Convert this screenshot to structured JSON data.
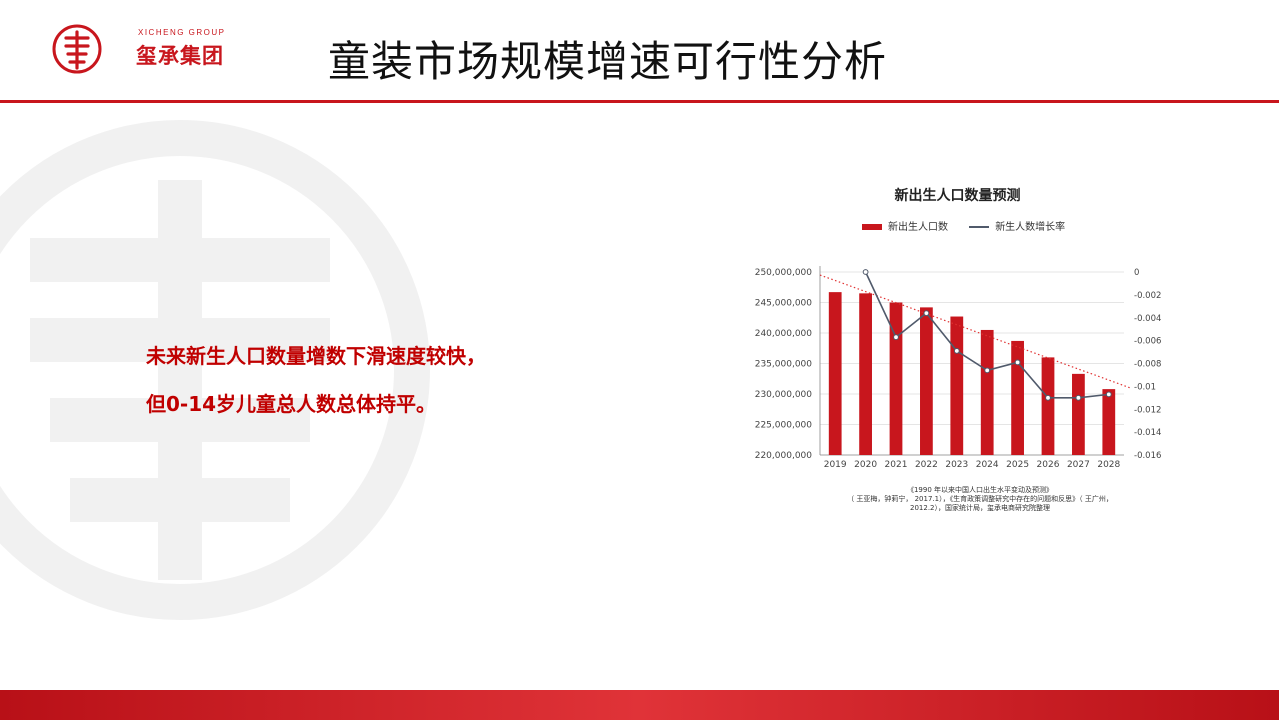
{
  "header": {
    "logo_en": "XICHENG GROUP",
    "logo_cn": "玺承集团",
    "title": "童装市场规模增速可行性分析"
  },
  "summary": {
    "line1": "未来新生人口数量增数下滑速度较快，",
    "line2": "但0-14岁儿童总人数总体持平。"
  },
  "colors": {
    "brand_red": "#c8161d",
    "text_red": "#c00000",
    "line_gray": "#505a6b"
  },
  "chart_data": {
    "type": "bar",
    "title": "新出生人口数量预测",
    "categories": [
      "2019",
      "2020",
      "2021",
      "2022",
      "2023",
      "2024",
      "2025",
      "2026",
      "2027",
      "2028"
    ],
    "series": [
      {
        "name": "新出生人口数",
        "type": "bar",
        "axis": "left",
        "values": [
          246700000,
          246500000,
          245000000,
          244200000,
          242700000,
          240500000,
          238700000,
          236000000,
          233300000,
          230800000
        ]
      },
      {
        "name": "新生人数增长率",
        "type": "line",
        "axis": "right",
        "values": [
          null,
          0,
          -0.0057,
          -0.0036,
          -0.0069,
          -0.0086,
          -0.0079,
          -0.011,
          -0.011,
          -0.0107
        ]
      }
    ],
    "trendline": {
      "series": "新出生人口数",
      "style": "dotted",
      "color": "#e03030"
    },
    "y_left": {
      "range": [
        220000000,
        250000000
      ],
      "ticks": [
        "250,000,000",
        "245,000,000",
        "240,000,000",
        "235,000,000",
        "230,000,000",
        "225,000,000",
        "220,000,000"
      ]
    },
    "y_right": {
      "range": [
        -0.016,
        0
      ],
      "ticks": [
        "0",
        "-0.002",
        "-0.004",
        "-0.006",
        "-0.008",
        "-0.01",
        "-0.012",
        "-0.014",
        "-0.016"
      ]
    },
    "grid": true,
    "legend_position": "top",
    "source": [
      "《1990 年以来中国人口出生水平变动及预测》",
      "（ 王亚梅，钟莉宁， 2017.1），《生育政策调整研究中存在的问题和反思》（ 王广州，",
      "2012.2），国家统计局，玺承电商研究院整理"
    ]
  }
}
